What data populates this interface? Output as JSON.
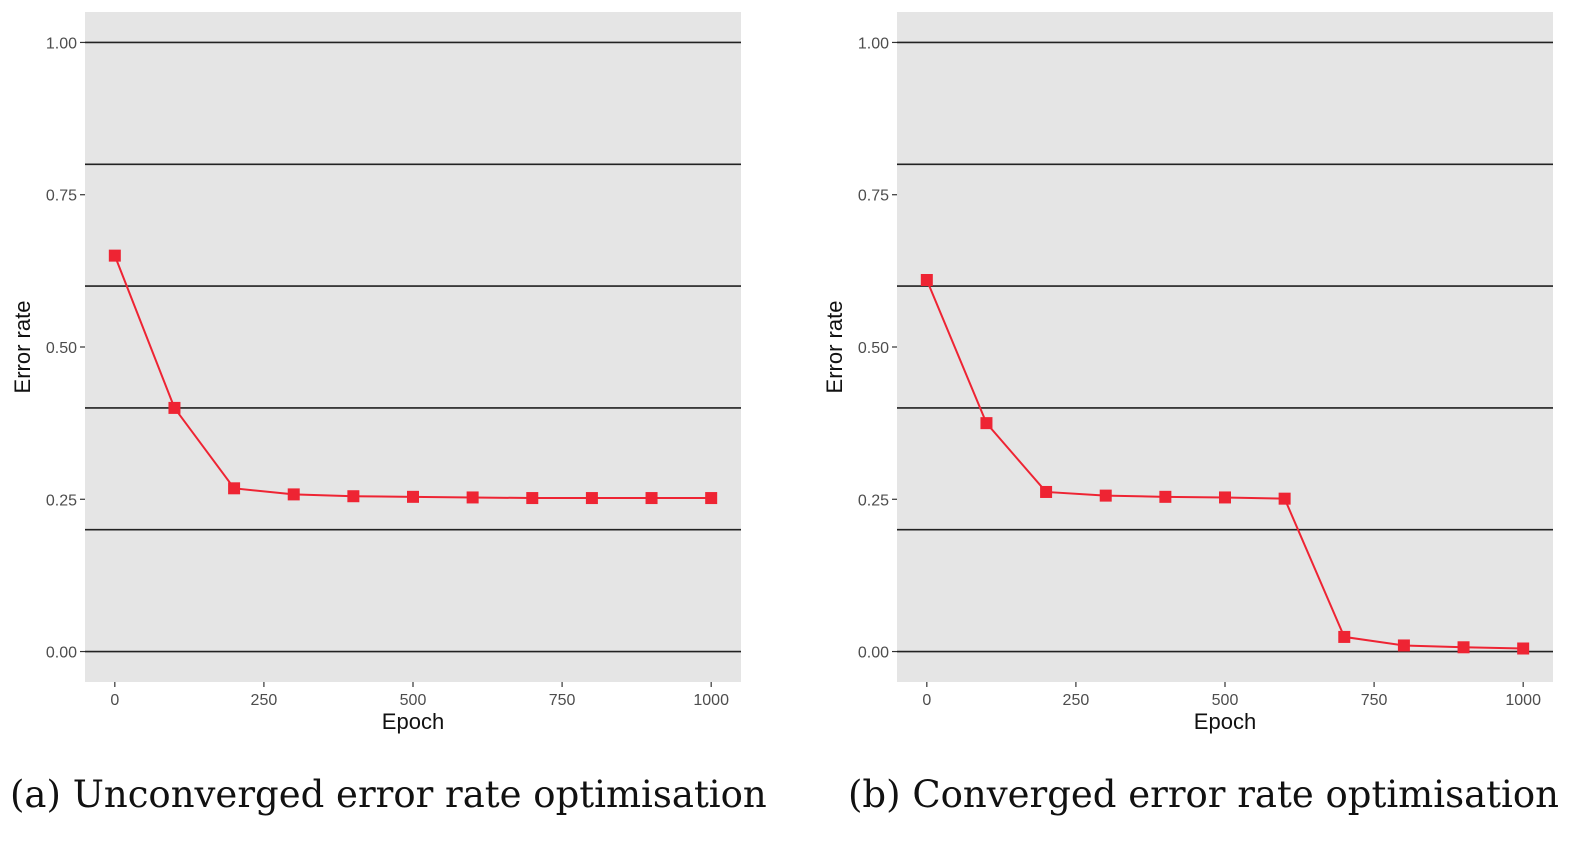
{
  "captions": {
    "a": "(a) Unconverged error rate optimisation",
    "b": "(b) Converged error rate optimisation"
  },
  "colors": {
    "panel_bg": "#e5e5e5",
    "series": "#ee2433",
    "grid_line": "#222222",
    "tick_text": "#4d4d4d"
  },
  "chart_data": [
    {
      "type": "line",
      "xlabel": "Epoch",
      "ylabel": "Error rate",
      "xlim": [
        -50,
        1050
      ],
      "ylim": [
        -0.05,
        1.05
      ],
      "x_ticks": [
        0,
        250,
        500,
        750,
        1000
      ],
      "x_tick_labels": [
        "0",
        "250",
        "500",
        "750",
        "1000"
      ],
      "y_ticks": [
        0,
        0.25,
        0.5,
        0.75,
        1.0
      ],
      "y_tick_labels": [
        "0.00",
        "0.25",
        "0.50",
        "0.75",
        "1.00"
      ],
      "horizontal_lines": [
        0,
        0.2,
        0.4,
        0.6,
        0.8,
        1.0
      ],
      "marker": "square",
      "series": [
        {
          "x": [
            0,
            100,
            200,
            300,
            400,
            500,
            600,
            700,
            800,
            900,
            1000
          ],
          "y": [
            0.65,
            0.4,
            0.268,
            0.258,
            0.255,
            0.254,
            0.253,
            0.252,
            0.252,
            0.252,
            0.252
          ]
        }
      ]
    },
    {
      "type": "line",
      "xlabel": "Epoch",
      "ylabel": "Error rate",
      "xlim": [
        -50,
        1050
      ],
      "ylim": [
        -0.05,
        1.05
      ],
      "x_ticks": [
        0,
        250,
        500,
        750,
        1000
      ],
      "x_tick_labels": [
        "0",
        "250",
        "500",
        "750",
        "1000"
      ],
      "y_ticks": [
        0,
        0.25,
        0.5,
        0.75,
        1.0
      ],
      "y_tick_labels": [
        "0.00",
        "0.25",
        "0.50",
        "0.75",
        "1.00"
      ],
      "horizontal_lines": [
        0,
        0.2,
        0.4,
        0.6,
        0.8,
        1.0
      ],
      "marker": "square",
      "series": [
        {
          "x": [
            0,
            100,
            200,
            300,
            400,
            500,
            600,
            700,
            800,
            900,
            1000
          ],
          "y": [
            0.61,
            0.375,
            0.262,
            0.256,
            0.254,
            0.253,
            0.251,
            0.024,
            0.01,
            0.007,
            0.005
          ]
        }
      ]
    }
  ]
}
